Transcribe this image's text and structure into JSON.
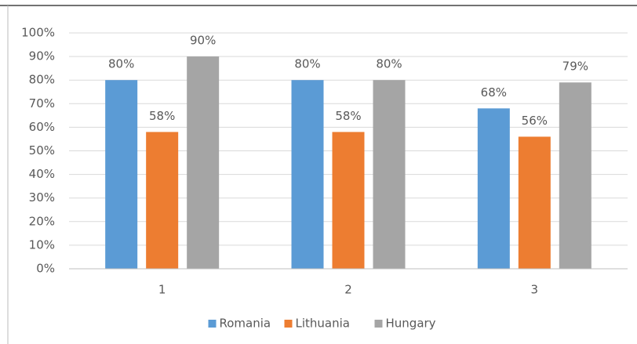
{
  "chart_data": {
    "type": "bar",
    "categories": [
      "1",
      "2",
      "3"
    ],
    "series": [
      {
        "name": "Romania",
        "color": "#5b9bd5",
        "values": [
          80,
          80,
          68
        ],
        "value_labels": [
          "80%",
          "80%",
          "68%"
        ]
      },
      {
        "name": "Lithuania",
        "color": "#ed7d31",
        "values": [
          58,
          58,
          56
        ],
        "value_labels": [
          "58%",
          "58%",
          "56%"
        ]
      },
      {
        "name": "Hungary",
        "color": "#a5a5a5",
        "values": [
          90,
          80,
          79
        ],
        "value_labels": [
          "90%",
          "80%",
          "79%"
        ]
      }
    ],
    "ylim": [
      0,
      100
    ],
    "yticks": [
      {
        "value": 0,
        "label": "0%"
      },
      {
        "value": 10,
        "label": "10%"
      },
      {
        "value": 20,
        "label": "20%"
      },
      {
        "value": 30,
        "label": "30%"
      },
      {
        "value": 40,
        "label": "40%"
      },
      {
        "value": 50,
        "label": "50%"
      },
      {
        "value": 60,
        "label": "60%"
      },
      {
        "value": 70,
        "label": "70%"
      },
      {
        "value": 80,
        "label": "80%"
      },
      {
        "value": 90,
        "label": "90%"
      },
      {
        "value": 100,
        "label": "100%"
      }
    ],
    "grid": true,
    "legend": "bottom"
  }
}
